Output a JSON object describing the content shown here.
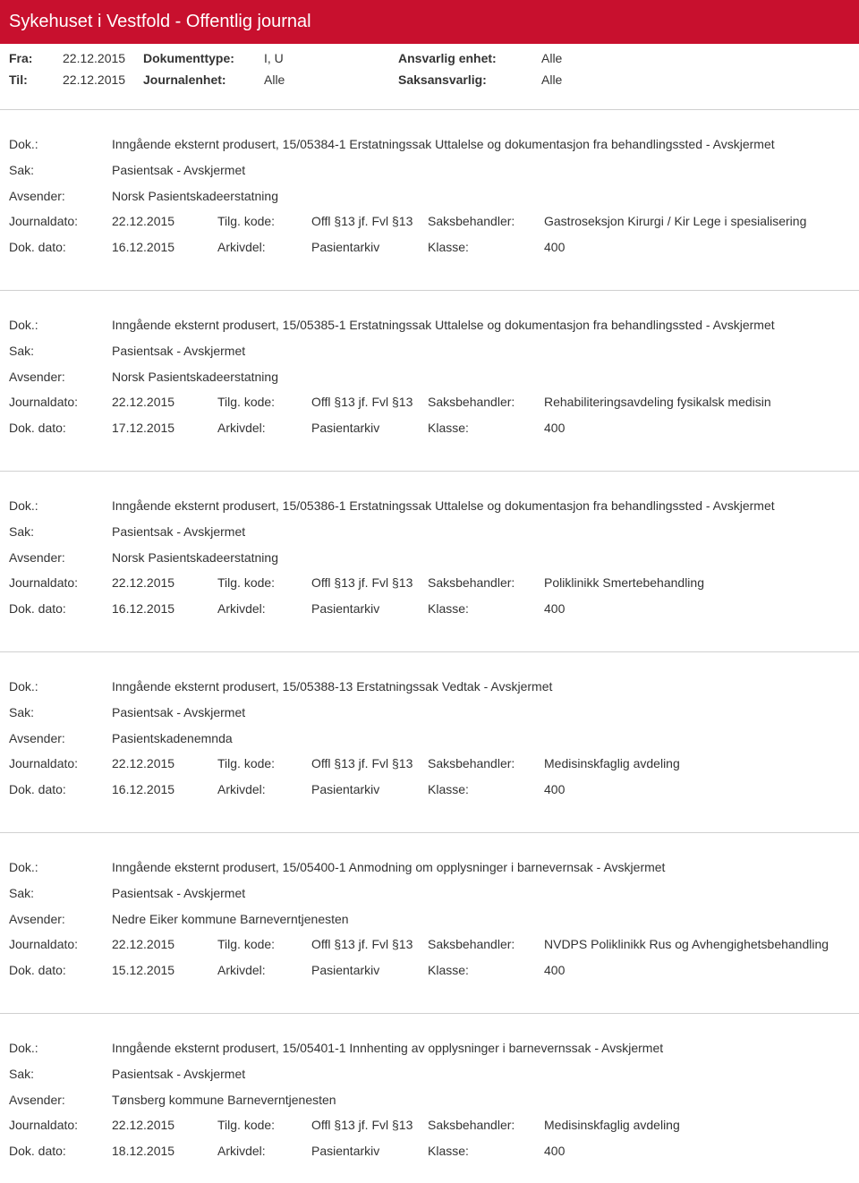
{
  "header": {
    "title": "Sykehuset i Vestfold - Offentlig journal"
  },
  "meta": {
    "fra_label": "Fra:",
    "fra_value": "22.12.2015",
    "til_label": "Til:",
    "til_value": "22.12.2015",
    "doktype_label": "Dokumenttype:",
    "doktype_value": "I, U",
    "journalenhet_label": "Journalenhet:",
    "journalenhet_value": "Alle",
    "ansvarlig_label": "Ansvarlig enhet:",
    "ansvarlig_value": "Alle",
    "saksansvarlig_label": "Saksansvarlig:",
    "saksansvarlig_value": "Alle"
  },
  "labels": {
    "dok": "Dok.:",
    "sak": "Sak:",
    "avsender": "Avsender:",
    "journaldato": "Journaldato:",
    "dokdato": "Dok. dato:",
    "tilgkode": "Tilg. kode:",
    "arkivdel": "Arkivdel:",
    "saksbehandler": "Saksbehandler:",
    "klasse": "Klasse:"
  },
  "records": [
    {
      "dok": "Inngående eksternt produsert, 15/05384-1 Erstatningssak Uttalelse og dokumentasjon fra behandlingssted - Avskjermet",
      "sak": "Pasientsak - Avskjermet",
      "avsender": "Norsk Pasientskadeerstatning",
      "journaldato": "22.12.2015",
      "tilgkode": "Offl §13 jf. Fvl §13",
      "saksbehandler": "Gastroseksjon Kirurgi / Kir Lege i spesialisering",
      "dokdato": "16.12.2015",
      "arkivdel": "Pasientarkiv",
      "klasse": "400"
    },
    {
      "dok": "Inngående eksternt produsert, 15/05385-1 Erstatningssak Uttalelse og dokumentasjon fra behandlingssted - Avskjermet",
      "sak": "Pasientsak - Avskjermet",
      "avsender": "Norsk Pasientskadeerstatning",
      "journaldato": "22.12.2015",
      "tilgkode": "Offl §13 jf. Fvl §13",
      "saksbehandler": "Rehabiliteringsavdeling fysikalsk medisin",
      "dokdato": "17.12.2015",
      "arkivdel": "Pasientarkiv",
      "klasse": "400"
    },
    {
      "dok": "Inngående eksternt produsert, 15/05386-1 Erstatningssak Uttalelse og dokumentasjon fra behandlingssted - Avskjermet",
      "sak": "Pasientsak - Avskjermet",
      "avsender": "Norsk Pasientskadeerstatning",
      "journaldato": "22.12.2015",
      "tilgkode": "Offl §13 jf. Fvl §13",
      "saksbehandler": "Poliklinikk Smertebehandling",
      "dokdato": "16.12.2015",
      "arkivdel": "Pasientarkiv",
      "klasse": "400"
    },
    {
      "dok": "Inngående eksternt produsert, 15/05388-13 Erstatningssak Vedtak - Avskjermet",
      "sak": "Pasientsak - Avskjermet",
      "avsender": "Pasientskadenemnda",
      "journaldato": "22.12.2015",
      "tilgkode": "Offl §13 jf. Fvl §13",
      "saksbehandler": "Medisinskfaglig avdeling",
      "dokdato": "16.12.2015",
      "arkivdel": "Pasientarkiv",
      "klasse": "400"
    },
    {
      "dok": "Inngående eksternt produsert, 15/05400-1 Anmodning om opplysninger i barnevernsak - Avskjermet",
      "sak": "Pasientsak - Avskjermet",
      "avsender": "Nedre Eiker kommune Barneverntjenesten",
      "journaldato": "22.12.2015",
      "tilgkode": "Offl §13 jf. Fvl §13",
      "saksbehandler": "NVDPS Poliklinikk Rus og Avhengighetsbehandling",
      "dokdato": "15.12.2015",
      "arkivdel": "Pasientarkiv",
      "klasse": "400"
    },
    {
      "dok": "Inngående eksternt produsert, 15/05401-1 Innhenting av opplysninger i barnevernssak - Avskjermet",
      "sak": "Pasientsak - Avskjermet",
      "avsender": "Tønsberg kommune Barneverntjenesten",
      "journaldato": "22.12.2015",
      "tilgkode": "Offl §13 jf. Fvl §13",
      "saksbehandler": "Medisinskfaglig avdeling",
      "dokdato": "18.12.2015",
      "arkivdel": "Pasientarkiv",
      "klasse": "400"
    }
  ],
  "style": {
    "header_bg": "#c8102e",
    "header_color": "#ffffff",
    "body_width": 960,
    "font_family": "Segoe UI, Arial, sans-serif",
    "font_size_base": 14,
    "divider_color": "#d0d0d0"
  }
}
